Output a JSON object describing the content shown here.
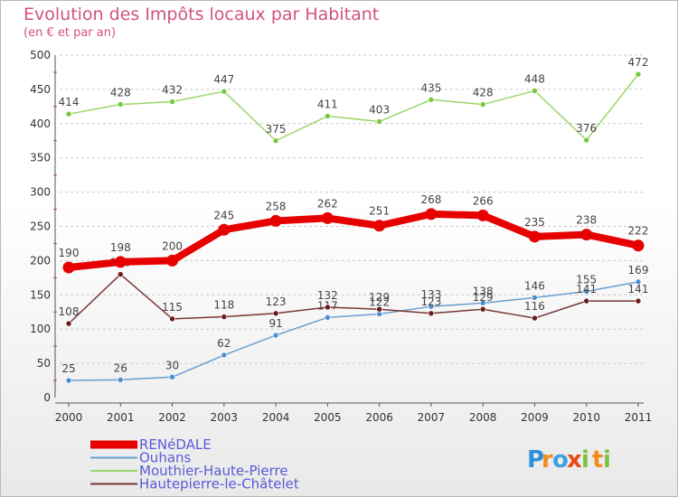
{
  "chart_data": {
    "type": "line",
    "title": "Evolution des Impôts locaux par Habitant",
    "subtitle": "(en € et par an)",
    "xlabel": "",
    "ylabel": "",
    "ylim": [
      0,
      500
    ],
    "yticks": [
      0,
      50,
      100,
      150,
      200,
      250,
      300,
      350,
      400,
      450,
      500
    ],
    "grid": true,
    "legend_position": "bottom-left",
    "categories": [
      "2000",
      "2001",
      "2002",
      "2003",
      "2004",
      "2005",
      "2006",
      "2007",
      "2008",
      "2009",
      "2010",
      "2011"
    ],
    "series": [
      {
        "name": "RENéDALE",
        "color": "#e60000",
        "markerColor": "#e60000",
        "thick": true,
        "values": [
          190,
          198,
          200,
          245,
          258,
          262,
          251,
          268,
          266,
          235,
          238,
          222
        ]
      },
      {
        "name": "Ouhans",
        "color": "#6a9ecf",
        "markerColor": "#4b8ed0",
        "thick": false,
        "values": [
          25,
          26,
          30,
          62,
          91,
          117,
          122,
          133,
          138,
          146,
          155,
          169
        ]
      },
      {
        "name": "Mouthier-Haute-Pierre",
        "color": "#99d66b",
        "markerColor": "#76c93c",
        "thick": false,
        "values": [
          414,
          428,
          432,
          447,
          375,
          411,
          403,
          435,
          428,
          448,
          376,
          472
        ]
      },
      {
        "name": "Hautepierre-le-Châtelet",
        "color": "#7a3636",
        "markerColor": "#6b1a1a",
        "thick": false,
        "values": [
          108,
          180,
          115,
          118,
          123,
          132,
          129,
          123,
          129,
          116,
          141,
          141
        ]
      }
    ]
  },
  "brand": {
    "name": "Proxiti",
    "letters": [
      "P",
      "r",
      "o",
      "x",
      "i",
      "t",
      "i"
    ],
    "colors": [
      "#2f8fd8",
      "#f28c1e",
      "#3aa0e0",
      "#e64a19",
      "#7bc142",
      "#f28c1e",
      "#7bc142"
    ]
  }
}
